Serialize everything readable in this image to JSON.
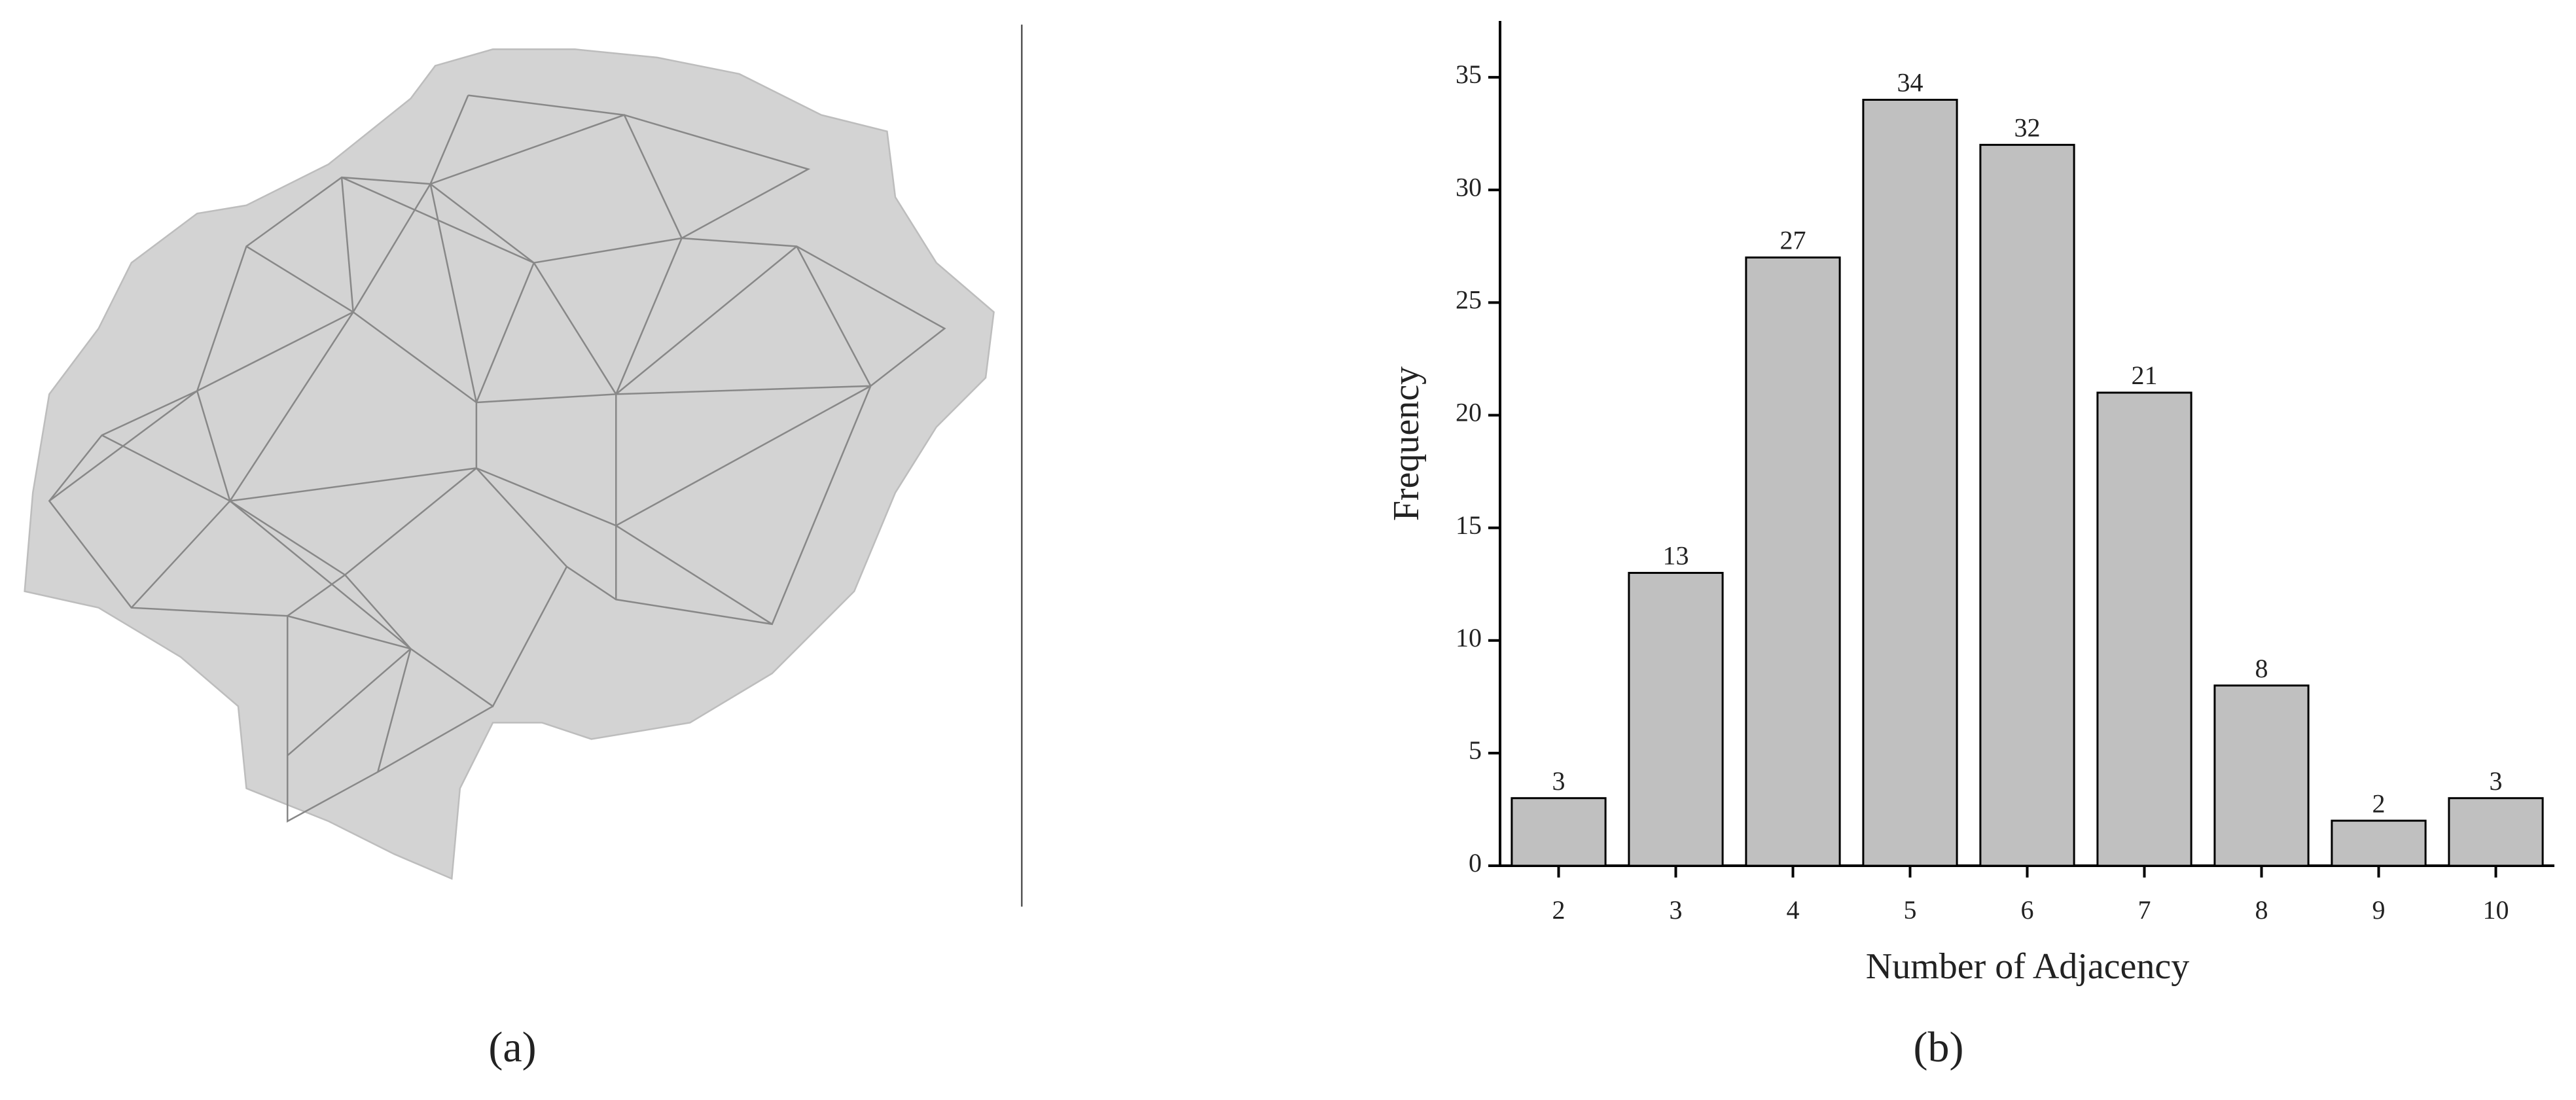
{
  "panels": {
    "a": "(a)",
    "b": "(b)"
  },
  "chart_data": {
    "type": "bar",
    "xlabel": "Number of Adjacency",
    "ylabel": "Frequency",
    "categories": [
      "2",
      "3",
      "4",
      "5",
      "6",
      "7",
      "8",
      "9",
      "10"
    ],
    "values": [
      3,
      13,
      27,
      34,
      32,
      21,
      8,
      2,
      3
    ],
    "color": "#c0c0c0",
    "ylim": [
      0,
      37.5
    ],
    "yticks": [
      0,
      5,
      10,
      15,
      20,
      25,
      30,
      35
    ],
    "grid": false
  }
}
